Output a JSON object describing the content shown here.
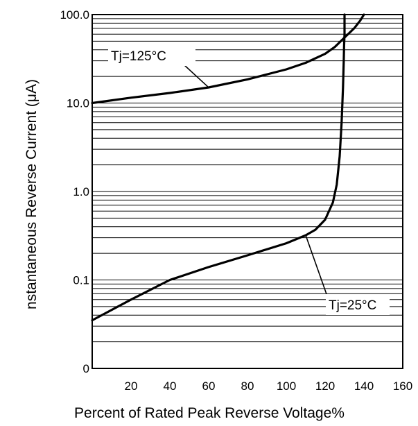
{
  "chart_data": {
    "type": "line",
    "title": "",
    "xlabel": "Percent of Rated Peak Reverse Voltage%",
    "ylabel": "nstantaneous Reverse Current (μA)",
    "xscale": "linear",
    "yscale": "log",
    "xlim": [
      0,
      160
    ],
    "ylim": [
      0.01,
      100
    ],
    "x_ticks": [
      20,
      40,
      60,
      80,
      100,
      120,
      140,
      160
    ],
    "x_tick_labels": [
      "20",
      "40",
      "60",
      "80",
      "100",
      "120",
      "140",
      "160"
    ],
    "y_ticks": [
      0.01,
      0.1,
      1,
      10,
      100
    ],
    "y_tick_labels": [
      "0",
      "0.1",
      "1.0",
      "10.0",
      "100.0"
    ],
    "grid": true,
    "series": [
      {
        "name": "Tj=125°C",
        "x": [
          0,
          20,
          40,
          60,
          80,
          100,
          110,
          120,
          125,
          130,
          135,
          138,
          140
        ],
        "y": [
          10,
          11.5,
          13,
          15,
          18.5,
          24,
          28.5,
          36,
          43,
          55,
          70,
          85,
          100
        ]
      },
      {
        "name": "Tj=25°C",
        "x": [
          0,
          20,
          40,
          60,
          80,
          100,
          110,
          115,
          120,
          124,
          126,
          127.5,
          128.5,
          129.2,
          129.6,
          129.8,
          130,
          130,
          130
        ],
        "y": [
          0.035,
          0.06,
          0.1,
          0.14,
          0.19,
          0.26,
          0.32,
          0.37,
          0.48,
          0.75,
          1.2,
          2.5,
          6,
          15,
          30,
          45,
          60,
          80,
          100
        ]
      }
    ],
    "annotations": [
      {
        "text": "Tj=125°C",
        "series": "Tj=125°C",
        "point_x": 60,
        "point_y": 15
      },
      {
        "text": "Tj=25°C",
        "series": "Tj=25°C",
        "point_x": 110,
        "point_y": 0.32
      }
    ]
  }
}
